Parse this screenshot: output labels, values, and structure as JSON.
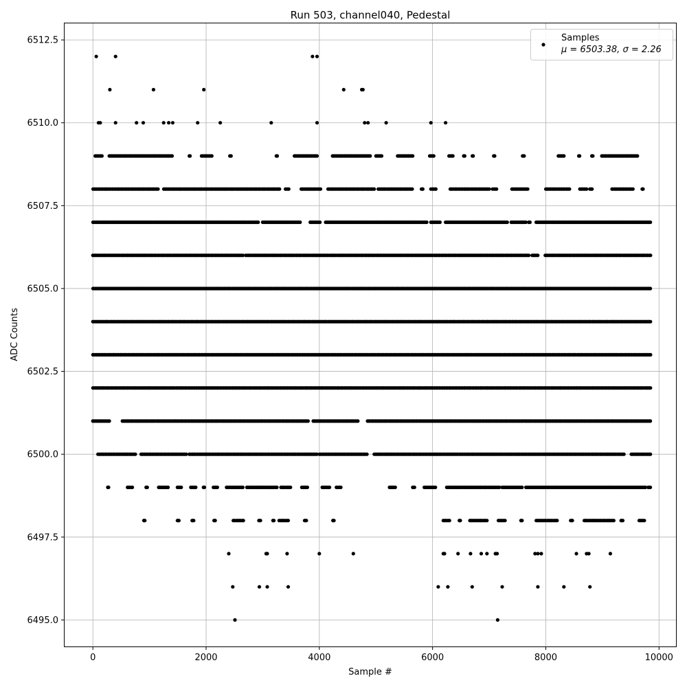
{
  "chart_data": {
    "type": "scatter",
    "title": "Run 503, channel040, Pedestal",
    "xlabel": "Sample #",
    "ylabel": "ADC Counts",
    "xlim": [
      -500,
      10300
    ],
    "ylim": [
      6494.2,
      6513.0
    ],
    "x_ticks": [
      0,
      2000,
      4000,
      6000,
      8000,
      10000
    ],
    "x_tick_labels": [
      "0",
      "2000",
      "4000",
      "6000",
      "8000",
      "10000"
    ],
    "y_ticks": [
      6495.0,
      6497.5,
      6500.0,
      6502.5,
      6505.0,
      6507.5,
      6510.0,
      6512.5
    ],
    "y_tick_labels": [
      "6495.0",
      "6497.5",
      "6500.0",
      "6502.5",
      "6505.0",
      "6507.5",
      "6510.0",
      "6512.5"
    ],
    "grid": true,
    "legend_position": "top-right",
    "marker_color": "#000000",
    "series": [
      {
        "name": "Samples",
        "legend_stats": "μ = 6503.38, σ = 2.26",
        "x_range": [
          0,
          9850
        ],
        "outliers": [
          {
            "x": 60,
            "y": 6512
          },
          {
            "x": 400,
            "y": 6512
          },
          {
            "x": 3880,
            "y": 6512
          },
          {
            "x": 3960,
            "y": 6512
          },
          {
            "x": 300,
            "y": 6511
          },
          {
            "x": 1070,
            "y": 6511
          },
          {
            "x": 1960,
            "y": 6511
          },
          {
            "x": 4430,
            "y": 6511
          },
          {
            "x": 4770,
            "y": 6511
          },
          {
            "x": 4750,
            "y": 6511
          },
          {
            "x": 100,
            "y": 6510
          },
          {
            "x": 130,
            "y": 6510
          },
          {
            "x": 400,
            "y": 6510
          },
          {
            "x": 770,
            "y": 6510
          },
          {
            "x": 890,
            "y": 6510
          },
          {
            "x": 1250,
            "y": 6510
          },
          {
            "x": 1340,
            "y": 6510
          },
          {
            "x": 1410,
            "y": 6510
          },
          {
            "x": 1850,
            "y": 6510
          },
          {
            "x": 2250,
            "y": 6510
          },
          {
            "x": 3150,
            "y": 6510
          },
          {
            "x": 3960,
            "y": 6510
          },
          {
            "x": 4800,
            "y": 6510
          },
          {
            "x": 4860,
            "y": 6510
          },
          {
            "x": 5180,
            "y": 6510
          },
          {
            "x": 5970,
            "y": 6510
          },
          {
            "x": 6230,
            "y": 6510
          },
          {
            "x": 2510,
            "y": 6495
          },
          {
            "x": 7150,
            "y": 6495
          },
          {
            "x": 2470,
            "y": 6496
          },
          {
            "x": 2940,
            "y": 6496
          },
          {
            "x": 3080,
            "y": 6496
          },
          {
            "x": 3450,
            "y": 6496
          },
          {
            "x": 6100,
            "y": 6496
          },
          {
            "x": 6270,
            "y": 6496
          },
          {
            "x": 6700,
            "y": 6496
          },
          {
            "x": 7230,
            "y": 6496
          },
          {
            "x": 7860,
            "y": 6496
          },
          {
            "x": 8320,
            "y": 6496
          },
          {
            "x": 8780,
            "y": 6496
          },
          {
            "x": 2400,
            "y": 6497
          },
          {
            "x": 3060,
            "y": 6497
          },
          {
            "x": 3080,
            "y": 6497
          },
          {
            "x": 3430,
            "y": 6497
          },
          {
            "x": 4000,
            "y": 6497
          },
          {
            "x": 4600,
            "y": 6497
          },
          {
            "x": 6190,
            "y": 6497
          },
          {
            "x": 6210,
            "y": 6497
          },
          {
            "x": 6450,
            "y": 6497
          },
          {
            "x": 6670,
            "y": 6497
          },
          {
            "x": 6860,
            "y": 6497
          },
          {
            "x": 6960,
            "y": 6497
          },
          {
            "x": 7110,
            "y": 6497
          },
          {
            "x": 7140,
            "y": 6497
          },
          {
            "x": 7810,
            "y": 6497
          },
          {
            "x": 7860,
            "y": 6497
          },
          {
            "x": 7920,
            "y": 6497
          },
          {
            "x": 8540,
            "y": 6497
          },
          {
            "x": 8720,
            "y": 6497
          },
          {
            "x": 8760,
            "y": 6497
          },
          {
            "x": 9140,
            "y": 6497
          }
        ],
        "level_segments": [
          {
            "y": 6509,
            "ranges": [
              [
                40,
                160
              ],
              [
                290,
                1400
              ],
              [
                1700,
                1720
              ],
              [
                1920,
                2100
              ],
              [
                2420,
                2440
              ],
              [
                3240,
                3260
              ],
              [
                3560,
                3960
              ],
              [
                4230,
                4900
              ],
              [
                5000,
                5100
              ],
              [
                5380,
                5650
              ],
              [
                5950,
                6020
              ],
              [
                6290,
                6360
              ],
              [
                6550,
                6570
              ],
              [
                6700,
                6720
              ],
              [
                7080,
                7100
              ],
              [
                7590,
                7620
              ],
              [
                8220,
                8320
              ],
              [
                8580,
                8600
              ],
              [
                8810,
                8830
              ],
              [
                8990,
                9620
              ]
            ]
          },
          {
            "y": 6508,
            "ranges": [
              [
                0,
                1150
              ],
              [
                1250,
                3300
              ],
              [
                3400,
                3460
              ],
              [
                3680,
                4020
              ],
              [
                4150,
                4970
              ],
              [
                5040,
                5640
              ],
              [
                5800,
                5830
              ],
              [
                5970,
                6060
              ],
              [
                6310,
                7000
              ],
              [
                7060,
                7130
              ],
              [
                7400,
                7680
              ],
              [
                8000,
                8420
              ],
              [
                8600,
                8720
              ],
              [
                8780,
                8820
              ],
              [
                9170,
                9540
              ],
              [
                9700,
                9720
              ]
            ]
          },
          {
            "y": 6507,
            "ranges": [
              [
                0,
                2920
              ],
              [
                3000,
                3660
              ],
              [
                3840,
                4010
              ],
              [
                4110,
                5900
              ],
              [
                5970,
                6130
              ],
              [
                6230,
                7320
              ],
              [
                7390,
                7650
              ],
              [
                7700,
                7720
              ],
              [
                7830,
                9850
              ]
            ]
          },
          {
            "y": 6506,
            "ranges": [
              [
                0,
                2650
              ],
              [
                2700,
                7700
              ],
              [
                7760,
                7860
              ],
              [
                7990,
                9850
              ]
            ]
          },
          {
            "y": 6505,
            "ranges": [
              [
                0,
                9850
              ]
            ]
          },
          {
            "y": 6504,
            "ranges": [
              [
                0,
                9850
              ]
            ]
          },
          {
            "y": 6503,
            "ranges": [
              [
                0,
                9850
              ]
            ]
          },
          {
            "y": 6502,
            "ranges": [
              [
                0,
                9850
              ]
            ]
          },
          {
            "y": 6501,
            "ranges": [
              [
                0,
                290
              ],
              [
                520,
                3800
              ],
              [
                3890,
                4680
              ],
              [
                4850,
                9850
              ]
            ]
          },
          {
            "y": 6500,
            "ranges": [
              [
                90,
                750
              ],
              [
                850,
                1650
              ],
              [
                1700,
                3960
              ],
              [
                4000,
                4840
              ],
              [
                4970,
                9380
              ],
              [
                9510,
                9850
              ]
            ]
          },
          {
            "y": 6499,
            "ranges": [
              [
                260,
                280
              ],
              [
                610,
                700
              ],
              [
                940,
                960
              ],
              [
                1160,
                1330
              ],
              [
                1490,
                1560
              ],
              [
                1730,
                1820
              ],
              [
                1950,
                1970
              ],
              [
                2130,
                2200
              ],
              [
                2360,
                2650
              ],
              [
                2720,
                3250
              ],
              [
                3320,
                3490
              ],
              [
                3690,
                3790
              ],
              [
                4050,
                4180
              ],
              [
                4300,
                4380
              ],
              [
                5240,
                5340
              ],
              [
                5650,
                5680
              ],
              [
                5850,
                6050
              ],
              [
                6250,
                7180
              ],
              [
                7230,
                7580
              ],
              [
                7650,
                9760
              ],
              [
                9810,
                9850
              ]
            ]
          },
          {
            "y": 6498,
            "ranges": [
              [
                900,
                920
              ],
              [
                1490,
                1520
              ],
              [
                1750,
                1780
              ],
              [
                2140,
                2160
              ],
              [
                2480,
                2660
              ],
              [
                2930,
                2960
              ],
              [
                3180,
                3200
              ],
              [
                3290,
                3450
              ],
              [
                3740,
                3770
              ],
              [
                4240,
                4260
              ],
              [
                6190,
                6300
              ],
              [
                6470,
                6490
              ],
              [
                6660,
                6840
              ],
              [
                6850,
                6960
              ],
              [
                7160,
                7280
              ],
              [
                7560,
                7580
              ],
              [
                7830,
                8200
              ],
              [
                8440,
                8470
              ],
              [
                8680,
                9200
              ],
              [
                9330,
                9360
              ],
              [
                9650,
                9740
              ]
            ]
          }
        ]
      }
    ]
  }
}
